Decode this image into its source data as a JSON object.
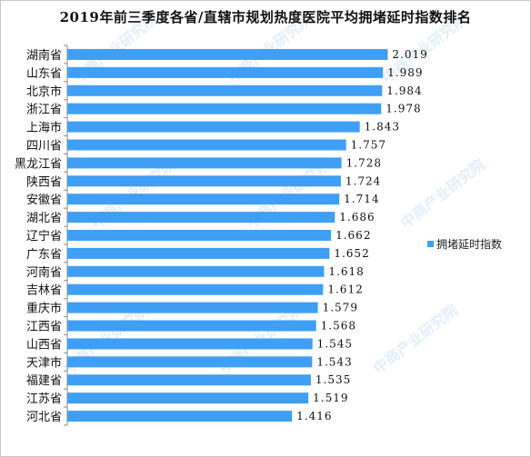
{
  "watermark": "中商产业研究院",
  "colors": {
    "bar": "#3f9ff5",
    "axis": "#8a8a8a",
    "text": "#111111"
  },
  "chart_data": {
    "type": "bar",
    "orientation": "horizontal",
    "title": "2019年前三季度各省/直辖市规划热度医院平均拥堵延时指数排名",
    "categories": [
      "湖南省",
      "山东省",
      "北京市",
      "浙江省",
      "上海市",
      "四川省",
      "黑龙江省",
      "陕西省",
      "安徽省",
      "湖北省",
      "辽宁省",
      "广东省",
      "河南省",
      "吉林省",
      "重庆市",
      "江西省",
      "山西省",
      "天津市",
      "福建省",
      "江苏省",
      "河北省"
    ],
    "series": [
      {
        "name": "拥堵延时指数",
        "values": [
          2.019,
          1.989,
          1.984,
          1.978,
          1.843,
          1.757,
          1.728,
          1.724,
          1.714,
          1.686,
          1.662,
          1.652,
          1.618,
          1.612,
          1.579,
          1.568,
          1.545,
          1.543,
          1.535,
          1.519,
          1.416
        ],
        "labels": [
          "2.019",
          "1.989",
          "1.984",
          "1.978",
          "1.843",
          "1.757",
          "1.728",
          "1.724",
          "1.714",
          "1.686",
          "1.662",
          "1.652",
          "1.618",
          "1.612",
          "1.579",
          "1.568",
          "1.545",
          "1.543",
          "1.535",
          "1.519",
          "1.416"
        ]
      }
    ],
    "xlim": [
      0,
      2.2
    ],
    "legend_position": "right",
    "grid": false
  }
}
